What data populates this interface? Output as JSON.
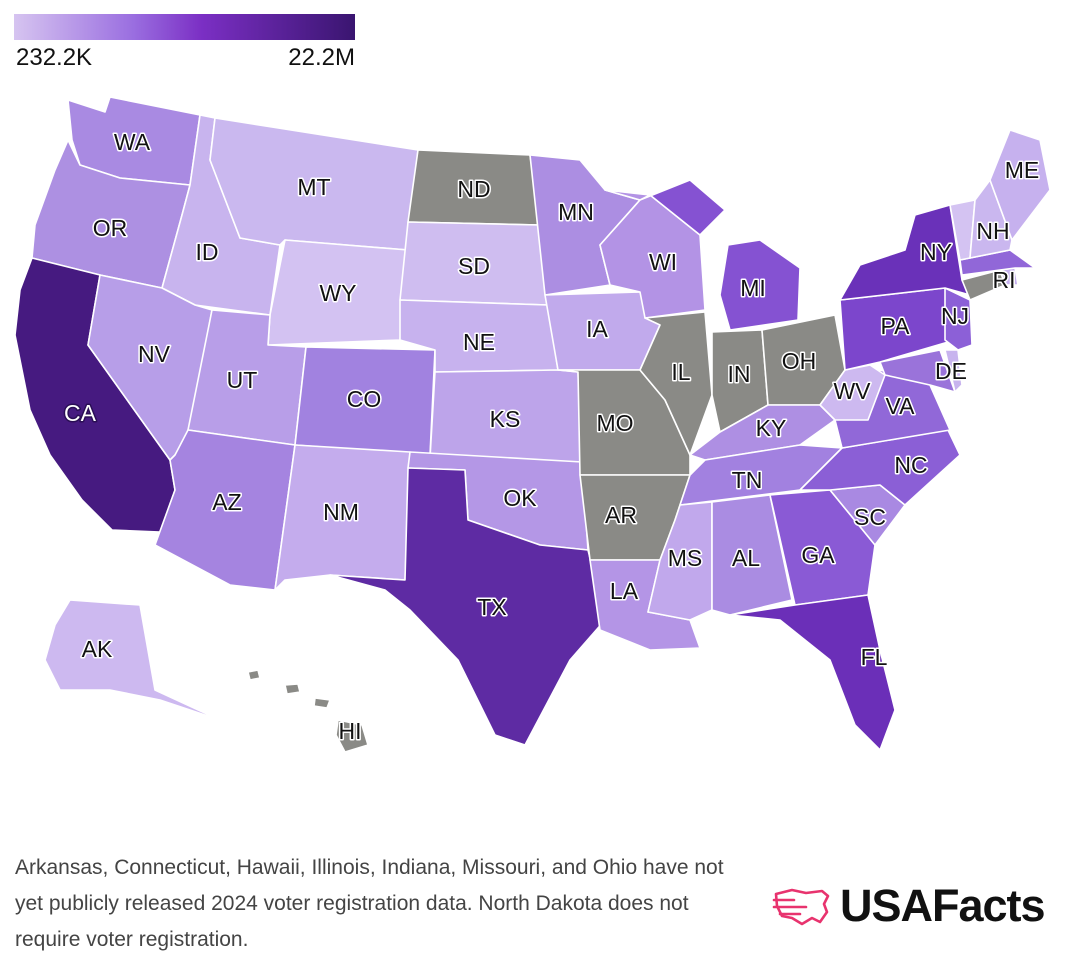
{
  "legend": {
    "min_label": "232.2K",
    "max_label": "22.2M",
    "colors": [
      "#d6c4f0",
      "#9a6ee0",
      "#7b2fc4",
      "#3a1570"
    ]
  },
  "no_data_color": "#8a8a86",
  "states": [
    {
      "code": "WA",
      "color": "#a98ae2"
    },
    {
      "code": "OR",
      "color": "#ad90e2"
    },
    {
      "code": "CA",
      "color": "#461a80",
      "text": "light"
    },
    {
      "code": "ID",
      "color": "#c8b4ee"
    },
    {
      "code": "NV",
      "color": "#b79ee8"
    },
    {
      "code": "MT",
      "color": "#cab8ef"
    },
    {
      "code": "WY",
      "color": "#d3c2f2"
    },
    {
      "code": "UT",
      "color": "#b89ee8"
    },
    {
      "code": "AZ",
      "color": "#a584e0"
    },
    {
      "code": "CO",
      "color": "#a182e0"
    },
    {
      "code": "NM",
      "color": "#c4aced"
    },
    {
      "code": "ND",
      "color": "#8a8a86",
      "nodata": true
    },
    {
      "code": "SD",
      "color": "#cfbdf0"
    },
    {
      "code": "NE",
      "color": "#c7b2ee"
    },
    {
      "code": "KS",
      "color": "#bda4ea"
    },
    {
      "code": "OK",
      "color": "#b497e6"
    },
    {
      "code": "TX",
      "color": "#5e2ba3"
    },
    {
      "code": "MN",
      "color": "#ac8ee2"
    },
    {
      "code": "IA",
      "color": "#c1aaec"
    },
    {
      "code": "MO",
      "color": "#8a8a86",
      "nodata": true
    },
    {
      "code": "AR",
      "color": "#8a8a86",
      "nodata": true
    },
    {
      "code": "LA",
      "color": "#b495e6"
    },
    {
      "code": "WI",
      "color": "#b393e5"
    },
    {
      "code": "IL",
      "color": "#8a8a86",
      "nodata": true
    },
    {
      "code": "MI",
      "color": "#8552d2"
    },
    {
      "code": "IN",
      "color": "#8a8a86",
      "nodata": true
    },
    {
      "code": "OH",
      "color": "#8a8a86",
      "nodata": true
    },
    {
      "code": "KY",
      "color": "#ae8fe3"
    },
    {
      "code": "TN",
      "color": "#a281e0"
    },
    {
      "code": "MS",
      "color": "#c1a8ec"
    },
    {
      "code": "AL",
      "color": "#aa8ce2"
    },
    {
      "code": "GA",
      "color": "#8a5ad5"
    },
    {
      "code": "FL",
      "color": "#6b2fb8"
    },
    {
      "code": "SC",
      "color": "#a989e2"
    },
    {
      "code": "NC",
      "color": "#8b5fd6"
    },
    {
      "code": "VA",
      "color": "#9168d8"
    },
    {
      "code": "WV",
      "color": "#cdb9f0"
    },
    {
      "code": "PA",
      "color": "#7c46cc"
    },
    {
      "code": "NY",
      "color": "#6a31b9"
    },
    {
      "code": "NJ",
      "color": "#8c60d7"
    },
    {
      "code": "DE",
      "color": "#c8b4ee"
    },
    {
      "code": "MD",
      "color": "#9a73da"
    },
    {
      "code": "CT",
      "color": "#8a8a86",
      "nodata": true
    },
    {
      "code": "RI",
      "color": "#c5b0ee"
    },
    {
      "code": "MA",
      "color": "#9167d8"
    },
    {
      "code": "VT",
      "color": "#d4c3f2"
    },
    {
      "code": "NH",
      "color": "#cab7ef"
    },
    {
      "code": "ME",
      "color": "#c6b1ee"
    },
    {
      "code": "AK",
      "color": "#cdb9f0"
    },
    {
      "code": "HI",
      "color": "#8a8a86",
      "nodata": true
    }
  ],
  "footnote": "Arkansas, Connecticut, Hawaii, Illinois, Indiana, Missouri, and Ohio have not yet publicly released 2024 voter registration data. North Dakota does not require voter registration.",
  "logo": {
    "text": "USAFacts",
    "mark_color": "#e8336e",
    "icon": "usa-map-logo-icon"
  }
}
